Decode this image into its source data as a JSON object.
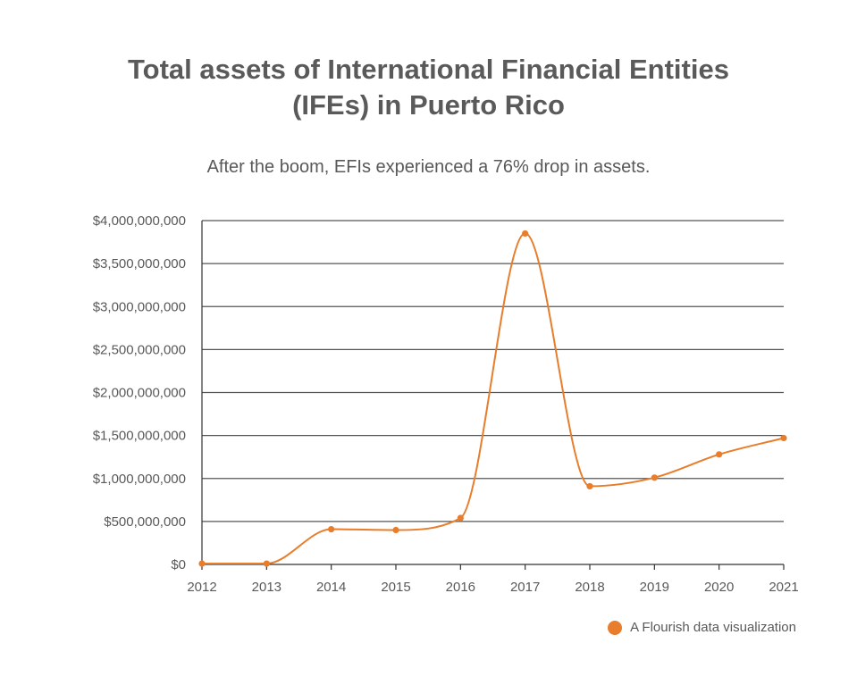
{
  "chart_data": {
    "type": "line",
    "title_lines": [
      "Total assets of International Financial Entities",
      "(IFEs) in Puerto Rico"
    ],
    "subtitle": "After the boom, EFIs experienced a 76% drop in assets.",
    "x": [
      2012,
      2013,
      2014,
      2015,
      2016,
      2017,
      2018,
      2019,
      2020,
      2021
    ],
    "series": [
      {
        "values": [
          10000000,
          10000000,
          410000000,
          400000000,
          540000000,
          3850000000,
          910000000,
          1010000000,
          1280000000,
          1470000000
        ],
        "color": "#e87d2b"
      }
    ],
    "ylim": [
      0,
      4000000000
    ],
    "y_ticks": [
      0,
      500000000,
      1000000000,
      1500000000,
      2000000000,
      2500000000,
      3000000000,
      3500000000,
      4000000000
    ],
    "y_tick_labels": [
      "$0",
      "$500,000,000",
      "$1,000,000,000",
      "$1,500,000,000",
      "$2,000,000,000",
      "$2,500,000,000",
      "$3,000,000,000",
      "$3,500,000,000",
      "$4,000,000,000"
    ],
    "x_tick_labels": [
      "2012",
      "2013",
      "2014",
      "2015",
      "2016",
      "2017",
      "2018",
      "2019",
      "2020",
      "2021"
    ],
    "grid": true,
    "gridline_color": "#555555",
    "axis_color": "#333333"
  },
  "footer": {
    "label": "A Flourish data visualization",
    "dot_color": "#e87d2b"
  }
}
